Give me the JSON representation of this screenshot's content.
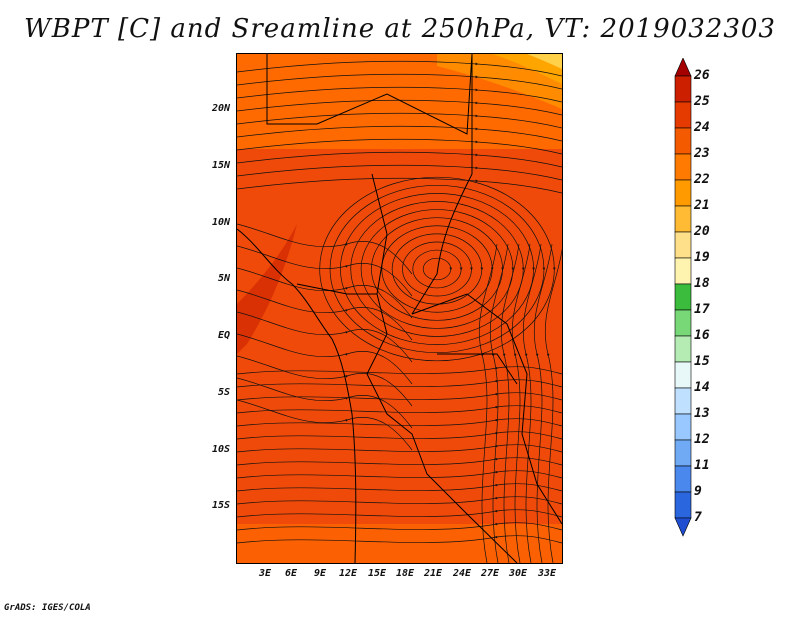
{
  "title": "WBPT [C] and Sreamline at 250hPa, VT: 2019032303",
  "footer": "GrADS: IGES/COLA",
  "map": {
    "lat_labels": [
      "20N",
      "15N",
      "10N",
      "5N",
      "EQ",
      "5S",
      "10S",
      "15S"
    ],
    "lon_labels": [
      "3E",
      "6E",
      "9E",
      "12E",
      "15E",
      "18E",
      "21E",
      "24E",
      "27E",
      "30E",
      "33E"
    ],
    "fill_colors": {
      "c20": "#ffd04a",
      "c21": "#ffa500",
      "c22": "#ff8c00",
      "c23": "#ff6a00",
      "c24": "#f04a0a",
      "c25": "#cc2200"
    }
  },
  "colorbar": {
    "labels": [
      "26",
      "25",
      "24",
      "23",
      "22",
      "21",
      "20",
      "19",
      "18",
      "17",
      "16",
      "15",
      "14",
      "13",
      "12",
      "11",
      "9",
      "7"
    ],
    "colors": [
      "#a50000",
      "#cc1f00",
      "#e53a00",
      "#f45a00",
      "#ff7a00",
      "#ff9a00",
      "#ffbb33",
      "#ffe08a",
      "#fff3b0",
      "#3cbc3c",
      "#78d878",
      "#b4ecb4",
      "#e8f8f8",
      "#c0e0ff",
      "#98c8ff",
      "#70aaf4",
      "#4a88ee",
      "#2a66dd",
      "#1f4fd0"
    ]
  }
}
